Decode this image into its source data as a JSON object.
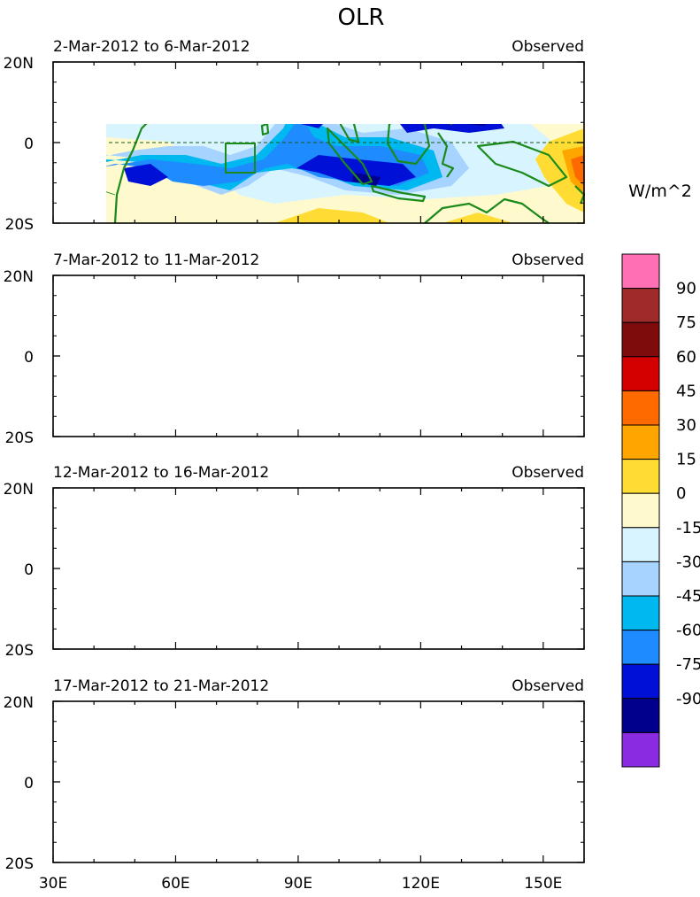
{
  "title": "OLR",
  "units": "W/m^2",
  "y_labels": [
    "20N",
    "0",
    "20S"
  ],
  "x_labels": [
    "30E",
    "60E",
    "90E",
    "120E",
    "150E"
  ],
  "x_values": [
    30,
    60,
    90,
    120,
    150
  ],
  "lon_range": [
    30,
    160
  ],
  "lat_range": [
    -20,
    20
  ],
  "colorbar": {
    "labels": [
      "90",
      "75",
      "60",
      "45",
      "30",
      "15",
      "0",
      "-15",
      "-30",
      "-45",
      "-60",
      "-75",
      "-90"
    ],
    "colors": [
      "#ff6fb4",
      "#9e2a2a",
      "#7e0c0c",
      "#d40000",
      "#ff6a00",
      "#ffa500",
      "#ffdc33",
      "#fffacd",
      "#d8f4ff",
      "#a6d3ff",
      "#00b8f0",
      "#1e8cff",
      "#0010d6",
      "#00008c",
      "#8a2be2"
    ]
  },
  "panels": [
    {
      "period": "2-Mar-2012 to 6-Mar-2012",
      "label": "Observed"
    },
    {
      "period": "7-Mar-2012 to 11-Mar-2012",
      "label": "Observed"
    },
    {
      "period": "12-Mar-2012 to 16-Mar-2012",
      "label": "Observed"
    },
    {
      "period": "17-Mar-2012 to 21-Mar-2012",
      "label": "Observed"
    }
  ]
}
